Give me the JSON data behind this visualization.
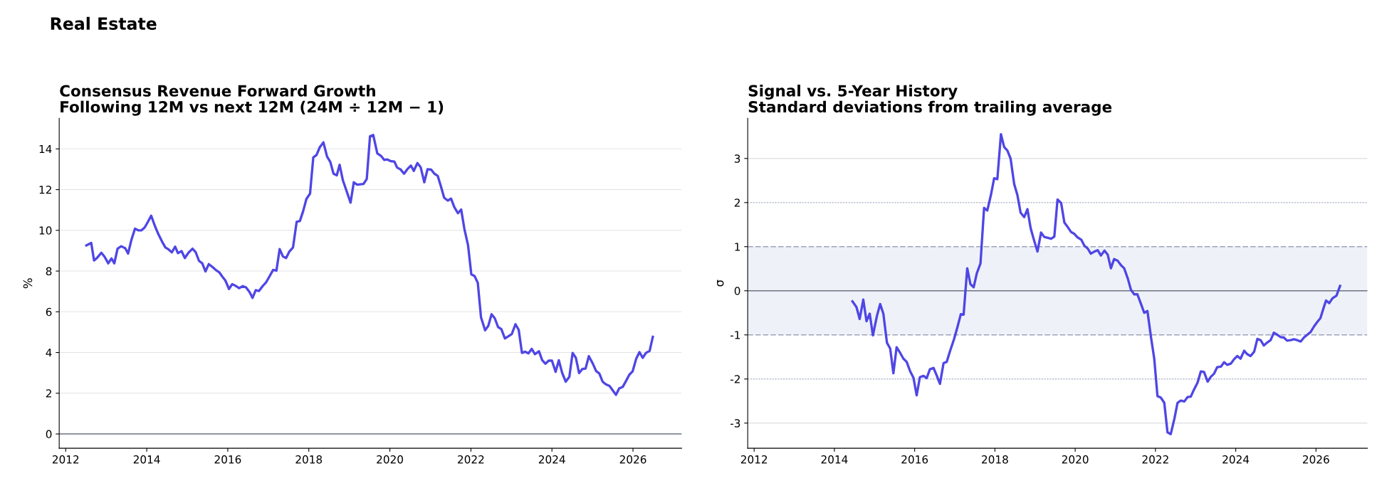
{
  "chart_data": [
    {
      "type": "line",
      "title": "Consensus Revenue Forward Growth\nFollowing 12M vs next 12M (24M ÷ 12M − 1)",
      "ylabel": "%",
      "annotations": [
        "Real Estate"
      ],
      "xlim": [
        2011.84,
        2027.2
      ],
      "xticks": [
        2012,
        2014,
        2016,
        2018,
        2020,
        2022,
        2024,
        2026
      ],
      "ylim": [
        -0.7,
        15.5
      ],
      "yticks": [
        0,
        2,
        4,
        6,
        8,
        10,
        12,
        14
      ],
      "grid": "y",
      "line_style": "solid",
      "marker": "none",
      "ref_lines": [
        {
          "axis": "y",
          "value": 0,
          "label": null,
          "color": "#6b7280",
          "line_style": "solid"
        }
      ],
      "series": [
        {
          "color": "#4f46e5",
          "x": [
            2012.51,
            2012.63,
            2012.7,
            2012.78,
            2012.88,
            2012.96,
            2013.05,
            2013.13,
            2013.2,
            2013.28,
            2013.37,
            2013.47,
            2013.54,
            2013.62,
            2013.71,
            2013.79,
            2013.87,
            2013.95,
            2014.03,
            2014.11,
            2014.2,
            2014.29,
            2014.38,
            2014.46,
            2014.54,
            2014.62,
            2014.7,
            2014.77,
            2014.86,
            2014.94,
            2015.03,
            2015.13,
            2015.21,
            2015.29,
            2015.37,
            2015.45,
            2015.53,
            2015.61,
            2015.7,
            2015.79,
            2015.86,
            2015.94,
            2016.03,
            2016.11,
            2016.19,
            2016.28,
            2016.37,
            2016.45,
            2016.54,
            2016.61,
            2016.69,
            2016.77,
            2016.86,
            2016.95,
            2017.03,
            2017.12,
            2017.2,
            2017.28,
            2017.36,
            2017.44,
            2017.52,
            2017.61,
            2017.7,
            2017.78,
            2017.86,
            2017.94,
            2018.03,
            2018.11,
            2018.19,
            2018.27,
            2018.36,
            2018.45,
            2018.53,
            2018.61,
            2018.69,
            2018.76,
            2018.84,
            2018.93,
            2019.03,
            2019.11,
            2019.19,
            2019.27,
            2019.35,
            2019.43,
            2019.51,
            2019.59,
            2019.69,
            2019.78,
            2019.86,
            2019.94,
            2020.02,
            2020.11,
            2020.18,
            2020.26,
            2020.35,
            2020.43,
            2020.52,
            2020.59,
            2020.68,
            2020.76,
            2020.85,
            2020.93,
            2021.02,
            2021.1,
            2021.18,
            2021.26,
            2021.34,
            2021.43,
            2021.51,
            2021.59,
            2021.68,
            2021.76,
            2021.84,
            2021.93,
            2022.01,
            2022.09,
            2022.17,
            2022.25,
            2022.35,
            2022.43,
            2022.51,
            2022.59,
            2022.67,
            2022.75,
            2022.84,
            2022.92,
            2023.01,
            2023.1,
            2023.18,
            2023.26,
            2023.34,
            2023.42,
            2023.5,
            2023.58,
            2023.68,
            2023.76,
            2023.84,
            2023.92,
            2024.0,
            2024.09,
            2024.17,
            2024.25,
            2024.34,
            2024.43,
            2024.51,
            2024.59,
            2024.67,
            2024.75,
            2024.83,
            2024.91,
            2025.01,
            2025.09,
            2025.17,
            2025.25,
            2025.33,
            2025.42,
            2025.5,
            2025.58,
            2025.66,
            2025.75,
            2025.83,
            2025.91,
            2025.99,
            2026.08,
            2026.16,
            2026.24,
            2026.32,
            2026.41,
            2026.49
          ],
          "values": [
            9.26,
            9.38,
            8.52,
            8.66,
            8.9,
            8.7,
            8.38,
            8.62,
            8.38,
            9.1,
            9.22,
            9.12,
            8.86,
            9.52,
            10.08,
            10.0,
            10.0,
            10.14,
            10.42,
            10.72,
            10.22,
            9.8,
            9.44,
            9.16,
            9.06,
            8.92,
            9.2,
            8.88,
            8.98,
            8.64,
            8.9,
            9.1,
            8.92,
            8.5,
            8.38,
            7.98,
            8.34,
            8.22,
            8.06,
            7.94,
            7.74,
            7.54,
            7.12,
            7.36,
            7.28,
            7.16,
            7.26,
            7.2,
            6.96,
            6.68,
            7.06,
            7.02,
            7.26,
            7.46,
            7.74,
            8.06,
            8.02,
            9.08,
            8.72,
            8.64,
            8.96,
            9.16,
            10.42,
            10.46,
            10.94,
            11.54,
            11.8,
            13.58,
            13.7,
            14.08,
            14.32,
            13.62,
            13.36,
            12.78,
            12.7,
            13.22,
            12.46,
            11.94,
            11.36,
            12.36,
            12.24,
            12.26,
            12.28,
            12.52,
            14.62,
            14.68,
            13.78,
            13.66,
            13.46,
            13.48,
            13.4,
            13.38,
            13.08,
            13.0,
            12.78,
            13.0,
            13.18,
            12.92,
            13.3,
            13.1,
            12.36,
            13.0,
            12.98,
            12.78,
            12.68,
            12.16,
            11.6,
            11.46,
            11.56,
            11.14,
            10.84,
            11.02,
            10.06,
            9.26,
            7.84,
            7.76,
            7.42,
            5.72,
            5.09,
            5.31,
            5.88,
            5.68,
            5.25,
            5.15,
            4.69,
            4.79,
            4.91,
            5.39,
            5.11,
            3.98,
            4.04,
            3.96,
            4.18,
            3.92,
            4.06,
            3.62,
            3.45,
            3.6,
            3.6,
            3.05,
            3.62,
            3.01,
            2.57,
            2.81,
            3.98,
            3.74,
            2.99,
            3.19,
            3.21,
            3.82,
            3.45,
            3.09,
            2.97,
            2.57,
            2.44,
            2.36,
            2.14,
            1.92,
            2.24,
            2.32,
            2.61,
            2.91,
            3.07,
            3.7,
            4.02,
            3.74,
            3.98,
            4.08,
            4.77
          ]
        }
      ]
    },
    {
      "type": "line",
      "title": "Signal vs. 5-Year History\nStandard deviations from trailing average",
      "ylabel": "σ",
      "xlim": [
        2011.84,
        2027.28
      ],
      "xticks": [
        2012,
        2014,
        2016,
        2018,
        2020,
        2022,
        2024,
        2026
      ],
      "ylim": [
        -3.57,
        3.91
      ],
      "yticks": [
        -3,
        -2,
        -1,
        0,
        1,
        2,
        3
      ],
      "line_style": "solid",
      "marker": "none",
      "bands": [
        {
          "axis": "y",
          "from": -1,
          "to": 1,
          "label": null,
          "color": "#eef2f8"
        }
      ],
      "ref_lines": [
        {
          "axis": "y",
          "value": 0,
          "label": null,
          "color": "#6b7280",
          "line_style": "solid"
        },
        {
          "axis": "y",
          "value": 1,
          "label": null,
          "color": "#9ca3b8",
          "line_style": "dashed"
        },
        {
          "axis": "y",
          "value": -1,
          "label": null,
          "color": "#9ca3b8",
          "line_style": "dashed"
        },
        {
          "axis": "y",
          "value": 2,
          "label": null,
          "color": "#b8bfd0",
          "line_style": "dotted"
        },
        {
          "axis": "y",
          "value": -2,
          "label": null,
          "color": "#b8bfd0",
          "line_style": "dotted"
        },
        {
          "axis": "y",
          "value": 3,
          "label": null,
          "color": "#e3e3e6",
          "line_style": "solid"
        },
        {
          "axis": "y",
          "value": -3,
          "label": null,
          "color": "#e3e3e6",
          "line_style": "solid"
        }
      ],
      "series": [
        {
          "color": "#4f46e5",
          "x": [
            2014.45,
            2014.55,
            2014.63,
            2014.72,
            2014.8,
            2014.88,
            2014.96,
            2015.06,
            2015.14,
            2015.22,
            2015.31,
            2015.39,
            2015.47,
            2015.55,
            2015.64,
            2015.72,
            2015.8,
            2015.89,
            2015.97,
            2016.05,
            2016.13,
            2016.22,
            2016.3,
            2016.38,
            2016.47,
            2016.55,
            2016.63,
            2016.72,
            2016.8,
            2016.88,
            2016.98,
            2017.07,
            2017.15,
            2017.22,
            2017.31,
            2017.39,
            2017.47,
            2017.55,
            2017.64,
            2017.73,
            2017.81,
            2017.9,
            2017.98,
            2018.06,
            2018.15,
            2018.23,
            2018.31,
            2018.39,
            2018.48,
            2018.56,
            2018.64,
            2018.73,
            2018.81,
            2018.89,
            2018.97,
            2019.06,
            2019.15,
            2019.23,
            2019.32,
            2019.4,
            2019.48,
            2019.56,
            2019.65,
            2019.73,
            2019.81,
            2019.9,
            2019.98,
            2020.06,
            2020.15,
            2020.23,
            2020.31,
            2020.39,
            2020.48,
            2020.56,
            2020.64,
            2020.73,
            2020.81,
            2020.89,
            2020.97,
            2021.06,
            2021.14,
            2021.22,
            2021.31,
            2021.39,
            2021.47,
            2021.55,
            2021.64,
            2021.72,
            2021.8,
            2021.89,
            2021.97,
            2022.05,
            2022.13,
            2022.22,
            2022.3,
            2022.38,
            2022.47,
            2022.55,
            2022.63,
            2022.72,
            2022.8,
            2022.88,
            2022.96,
            2023.05,
            2023.13,
            2023.21,
            2023.3,
            2023.38,
            2023.46,
            2023.54,
            2023.63,
            2023.71,
            2023.79,
            2023.88,
            2023.96,
            2024.04,
            2024.12,
            2024.21,
            2024.29,
            2024.37,
            2024.46,
            2024.54,
            2024.62,
            2024.7,
            2024.79,
            2024.87,
            2024.95,
            2025.04,
            2025.12,
            2025.2,
            2025.28,
            2025.37,
            2025.45,
            2025.53,
            2025.62,
            2025.7,
            2025.78,
            2025.87,
            2025.95,
            2026.03,
            2026.11,
            2026.2,
            2026.25,
            2026.33,
            2026.41,
            2026.51,
            2026.6
          ],
          "values": [
            -0.24,
            -0.37,
            -0.64,
            -0.2,
            -0.69,
            -0.52,
            -1.01,
            -0.57,
            -0.3,
            -0.52,
            -1.18,
            -1.31,
            -1.87,
            -1.28,
            -1.41,
            -1.54,
            -1.61,
            -1.83,
            -1.97,
            -2.37,
            -1.96,
            -1.93,
            -1.98,
            -1.78,
            -1.75,
            -1.92,
            -2.11,
            -1.64,
            -1.61,
            -1.37,
            -1.1,
            -0.81,
            -0.53,
            -0.54,
            0.51,
            0.15,
            0.08,
            0.4,
            0.62,
            1.88,
            1.82,
            2.17,
            2.55,
            2.53,
            3.55,
            3.26,
            3.18,
            3.0,
            2.42,
            2.17,
            1.77,
            1.67,
            1.85,
            1.42,
            1.16,
            0.89,
            1.32,
            1.22,
            1.2,
            1.18,
            1.23,
            2.07,
            1.99,
            1.55,
            1.45,
            1.33,
            1.29,
            1.21,
            1.16,
            1.02,
            0.96,
            0.84,
            0.89,
            0.92,
            0.8,
            0.91,
            0.82,
            0.51,
            0.72,
            0.68,
            0.58,
            0.51,
            0.28,
            0.02,
            -0.08,
            -0.08,
            -0.3,
            -0.5,
            -0.46,
            -1.06,
            -1.54,
            -2.39,
            -2.42,
            -2.54,
            -3.21,
            -3.25,
            -2.91,
            -2.54,
            -2.49,
            -2.51,
            -2.41,
            -2.4,
            -2.24,
            -2.08,
            -1.83,
            -1.84,
            -2.06,
            -1.95,
            -1.88,
            -1.73,
            -1.72,
            -1.62,
            -1.68,
            -1.65,
            -1.55,
            -1.48,
            -1.54,
            -1.36,
            -1.44,
            -1.48,
            -1.38,
            -1.09,
            -1.12,
            -1.24,
            -1.17,
            -1.12,
            -0.95,
            -1.0,
            -1.05,
            -1.06,
            -1.13,
            -1.12,
            -1.1,
            -1.12,
            -1.15,
            -1.06,
            -1.0,
            -0.93,
            -0.81,
            -0.71,
            -0.62,
            -0.36,
            -0.22,
            -0.28,
            -0.17,
            -0.11,
            0.11
          ]
        }
      ]
    }
  ]
}
